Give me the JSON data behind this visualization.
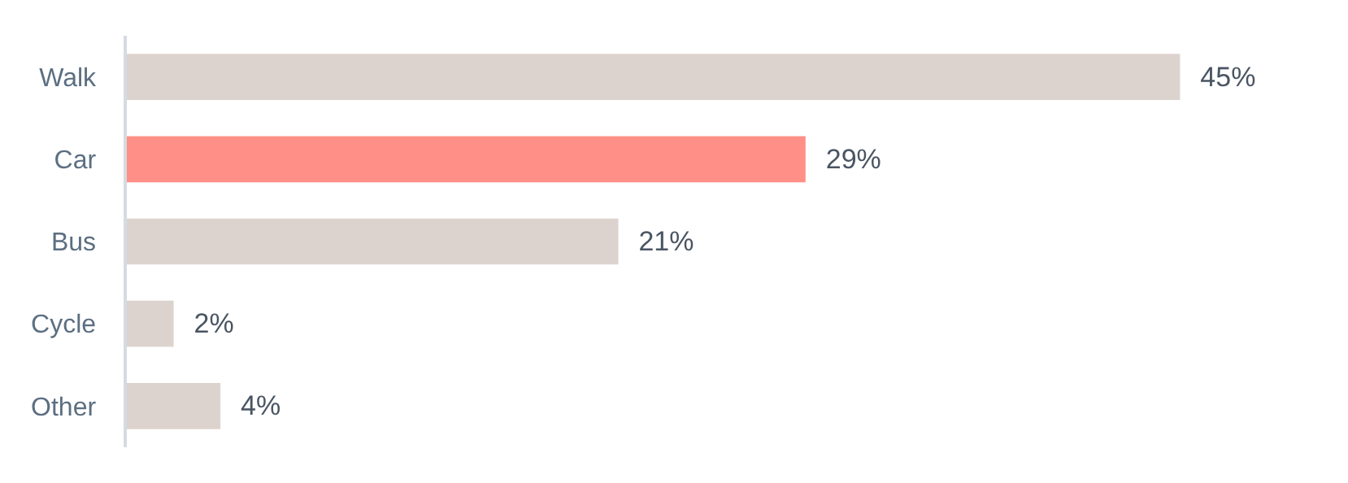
{
  "chart_data": {
    "type": "bar",
    "orientation": "horizontal",
    "categories": [
      "Walk",
      "Car",
      "Bus",
      "Cycle",
      "Other"
    ],
    "values": [
      45,
      29,
      21,
      2,
      4
    ],
    "colors": [
      "#ddd3ce",
      "#ff8f87",
      "#ddd3ce",
      "#ddd3ce",
      "#ddd3ce"
    ],
    "value_labels": [
      "45%",
      "29%",
      "21%",
      "2%",
      "4%"
    ],
    "legend": false
  }
}
